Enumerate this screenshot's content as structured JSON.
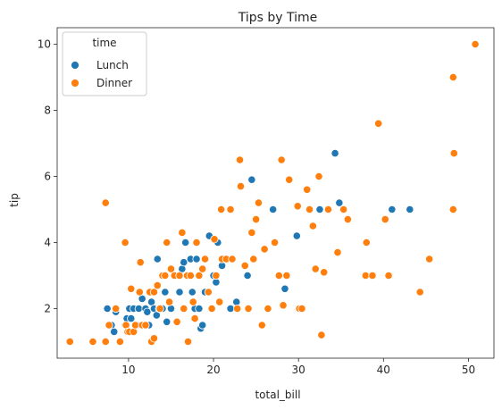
{
  "chart_data": {
    "type": "scatter",
    "title": "Tips by Time",
    "xlabel": "total_bill",
    "ylabel": "tip",
    "xlim": [
      1.6,
      53
    ],
    "ylim": [
      0.5,
      10.5
    ],
    "x_ticks": [
      10,
      20,
      30,
      40,
      50
    ],
    "y_ticks": [
      2,
      4,
      6,
      8,
      10
    ],
    "grid": false,
    "legend": {
      "title": "time",
      "position": "top-left"
    },
    "series": [
      {
        "name": "Lunch",
        "color": "#1f77b4",
        "points": [
          [
            7.5,
            2.0
          ],
          [
            8.0,
            1.5
          ],
          [
            8.3,
            1.3
          ],
          [
            8.5,
            1.9
          ],
          [
            9.6,
            1.5
          ],
          [
            9.8,
            1.7
          ],
          [
            10.1,
            2.0
          ],
          [
            10.3,
            1.7
          ],
          [
            10.6,
            2.0
          ],
          [
            11.0,
            1.5
          ],
          [
            11.2,
            2.0
          ],
          [
            11.6,
            2.3
          ],
          [
            12.0,
            2.0
          ],
          [
            12.2,
            1.9
          ],
          [
            12.4,
            1.5
          ],
          [
            12.7,
            2.2
          ],
          [
            13.0,
            2.0
          ],
          [
            13.3,
            1.8
          ],
          [
            13.4,
            3.5
          ],
          [
            13.6,
            2.0
          ],
          [
            14.0,
            2.0
          ],
          [
            14.3,
            2.5
          ],
          [
            14.5,
            1.6
          ],
          [
            15.0,
            2.0
          ],
          [
            15.5,
            3.0
          ],
          [
            16.0,
            2.5
          ],
          [
            16.3,
            3.2
          ],
          [
            16.5,
            3.4
          ],
          [
            16.7,
            4.0
          ],
          [
            17.0,
            3.0
          ],
          [
            17.3,
            3.5
          ],
          [
            17.5,
            2.5
          ],
          [
            17.8,
            2.0
          ],
          [
            18.0,
            3.5
          ],
          [
            18.3,
            2.0
          ],
          [
            18.5,
            1.4
          ],
          [
            18.7,
            1.5
          ],
          [
            19.0,
            2.5
          ],
          [
            19.5,
            4.2
          ],
          [
            20.0,
            3.0
          ],
          [
            20.3,
            2.8
          ],
          [
            20.5,
            4.0
          ],
          [
            21.0,
            3.3
          ],
          [
            22.0,
            2.0
          ],
          [
            22.7,
            2.2
          ],
          [
            24.0,
            3.0
          ],
          [
            24.5,
            5.9
          ],
          [
            27.0,
            5.0
          ],
          [
            28.4,
            2.6
          ],
          [
            29.8,
            4.2
          ],
          [
            32.5,
            5.0
          ],
          [
            34.3,
            6.7
          ],
          [
            34.8,
            5.2
          ],
          [
            41.0,
            5.0
          ],
          [
            43.1,
            5.0
          ]
        ]
      },
      {
        "name": "Dinner",
        "color": "#ff7f0e",
        "points": [
          [
            3.1,
            1.0
          ],
          [
            5.8,
            1.0
          ],
          [
            7.3,
            1.0
          ],
          [
            7.3,
            5.2
          ],
          [
            7.7,
            1.5
          ],
          [
            8.5,
            2.0
          ],
          [
            9.0,
            1.0
          ],
          [
            9.6,
            4.0
          ],
          [
            9.7,
            1.5
          ],
          [
            9.9,
            1.3
          ],
          [
            10.1,
            1.3
          ],
          [
            10.3,
            2.6
          ],
          [
            10.6,
            1.3
          ],
          [
            10.8,
            1.5
          ],
          [
            11.3,
            2.5
          ],
          [
            11.4,
            3.4
          ],
          [
            11.6,
            1.5
          ],
          [
            12.0,
            1.5
          ],
          [
            12.5,
            2.5
          ],
          [
            12.7,
            1.0
          ],
          [
            13.0,
            1.1
          ],
          [
            13.0,
            2.5
          ],
          [
            13.4,
            2.7
          ],
          [
            13.7,
            2.0
          ],
          [
            14.0,
            3.0
          ],
          [
            14.3,
            3.0
          ],
          [
            14.5,
            4.0
          ],
          [
            14.8,
            2.2
          ],
          [
            15.0,
            3.2
          ],
          [
            15.4,
            3.0
          ],
          [
            15.7,
            1.6
          ],
          [
            16.0,
            3.0
          ],
          [
            16.3,
            4.3
          ],
          [
            16.5,
            2.0
          ],
          [
            16.9,
            3.0
          ],
          [
            17.0,
            1.0
          ],
          [
            17.3,
            3.0
          ],
          [
            17.6,
            2.2
          ],
          [
            17.8,
            1.7
          ],
          [
            18.0,
            4.0
          ],
          [
            18.3,
            3.0
          ],
          [
            18.7,
            3.2
          ],
          [
            19.0,
            3.5
          ],
          [
            19.4,
            2.5
          ],
          [
            19.8,
            2.0
          ],
          [
            20.1,
            4.1
          ],
          [
            20.3,
            3.0
          ],
          [
            20.7,
            2.2
          ],
          [
            20.9,
            5.0
          ],
          [
            21.0,
            3.5
          ],
          [
            21.5,
            3.5
          ],
          [
            22.0,
            5.0
          ],
          [
            22.2,
            3.5
          ],
          [
            22.8,
            2.0
          ],
          [
            23.1,
            6.5
          ],
          [
            23.2,
            5.7
          ],
          [
            23.7,
            3.3
          ],
          [
            24.1,
            2.0
          ],
          [
            24.5,
            4.3
          ],
          [
            24.7,
            3.5
          ],
          [
            25.0,
            4.7
          ],
          [
            25.3,
            5.2
          ],
          [
            25.7,
            1.5
          ],
          [
            26.0,
            3.8
          ],
          [
            26.4,
            2.0
          ],
          [
            27.2,
            4.0
          ],
          [
            27.7,
            3.0
          ],
          [
            28.0,
            6.5
          ],
          [
            28.2,
            2.1
          ],
          [
            28.6,
            3.0
          ],
          [
            28.9,
            5.9
          ],
          [
            29.9,
            5.1
          ],
          [
            30.1,
            2.0
          ],
          [
            30.4,
            2.0
          ],
          [
            31.0,
            5.6
          ],
          [
            31.3,
            5.0
          ],
          [
            31.7,
            4.5
          ],
          [
            32.0,
            3.2
          ],
          [
            32.4,
            6.0
          ],
          [
            32.7,
            1.2
          ],
          [
            33.0,
            3.1
          ],
          [
            33.5,
            5.0
          ],
          [
            34.6,
            3.7
          ],
          [
            35.3,
            5.0
          ],
          [
            35.8,
            4.7
          ],
          [
            37.9,
            3.0
          ],
          [
            38.0,
            4.0
          ],
          [
            38.7,
            3.0
          ],
          [
            39.4,
            7.6
          ],
          [
            40.2,
            4.7
          ],
          [
            40.6,
            3.0
          ],
          [
            44.3,
            2.5
          ],
          [
            45.4,
            3.5
          ],
          [
            48.2,
            9.0
          ],
          [
            48.2,
            5.0
          ],
          [
            48.3,
            6.7
          ],
          [
            50.8,
            10.0
          ]
        ]
      }
    ]
  }
}
